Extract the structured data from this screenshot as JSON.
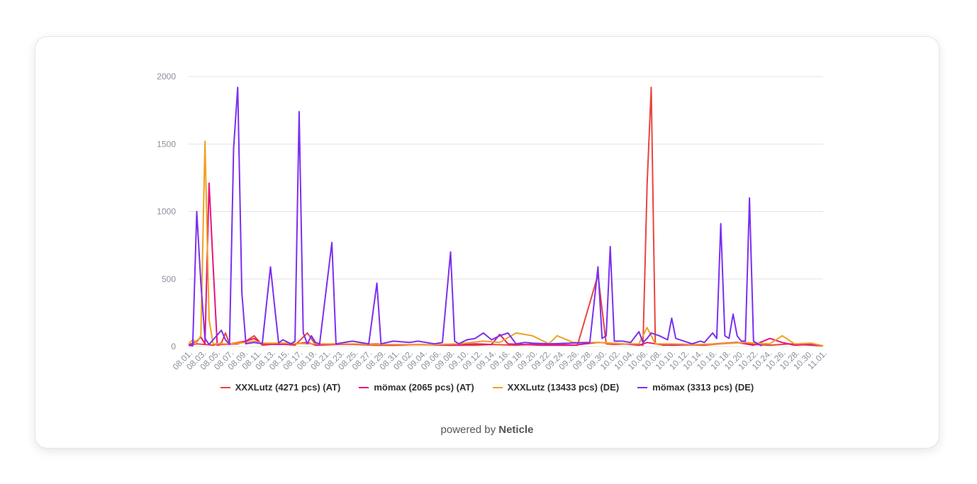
{
  "chart_data": {
    "type": "line",
    "title": "",
    "xlabel": "",
    "ylabel": "",
    "ylim": [
      0,
      2000
    ],
    "yticks": [
      0,
      500,
      1000,
      1500,
      2000
    ],
    "grid": true,
    "legend_position": "bottom",
    "x_tick_labels": [
      "08.01.",
      "08.03.",
      "08.05.",
      "08.07.",
      "08.09.",
      "08.11.",
      "08.13.",
      "08.15.",
      "08.17.",
      "08.19.",
      "08.21.",
      "08.23.",
      "08.25.",
      "08.27.",
      "08.29.",
      "08.31.",
      "09.02.",
      "09.04.",
      "09.06.",
      "09.08.",
      "09.10.",
      "09.12.",
      "09.14.",
      "09.16.",
      "09.18.",
      "09.20.",
      "09.22.",
      "09.24.",
      "09.26.",
      "09.28.",
      "09.30.",
      "10.02.",
      "10.04.",
      "10.06.",
      "10.08.",
      "10.10.",
      "10.12.",
      "10.14.",
      "10.16.",
      "10.18.",
      "10.20.",
      "10.22.",
      "10.24.",
      "10.26.",
      "10.28.",
      "10.30.",
      "11.01."
    ],
    "series": [
      {
        "name": "XXXLutz (4271 pcs) (AT)",
        "color": "#e8453c",
        "points": [
          [
            0,
            10
          ],
          [
            2,
            20
          ],
          [
            4,
            15
          ],
          [
            6,
            10
          ],
          [
            8,
            25
          ],
          [
            9,
            100
          ],
          [
            10,
            20
          ],
          [
            14,
            40
          ],
          [
            16,
            80
          ],
          [
            18,
            10
          ],
          [
            22,
            20
          ],
          [
            26,
            10
          ],
          [
            29,
            100
          ],
          [
            31,
            15
          ],
          [
            36,
            20
          ],
          [
            46,
            10
          ],
          [
            50,
            10
          ],
          [
            56,
            15
          ],
          [
            64,
            10
          ],
          [
            70,
            10
          ],
          [
            74,
            15
          ],
          [
            80,
            10
          ],
          [
            86,
            20
          ],
          [
            90,
            15
          ],
          [
            95,
            10
          ],
          [
            100,
            530
          ],
          [
            102,
            20
          ],
          [
            104,
            15
          ],
          [
            108,
            20
          ],
          [
            111,
            10
          ],
          [
            112,
            1200
          ],
          [
            113,
            1920
          ],
          [
            114,
            20
          ],
          [
            116,
            10
          ],
          [
            120,
            15
          ],
          [
            126,
            10
          ],
          [
            130,
            20
          ],
          [
            134,
            30
          ],
          [
            138,
            15
          ],
          [
            142,
            10
          ],
          [
            147,
            20
          ],
          [
            152,
            10
          ],
          [
            155,
            5
          ]
        ]
      },
      {
        "name": "mömax (2065 pcs) (AT)",
        "color": "#e6157c",
        "points": [
          [
            0,
            10
          ],
          [
            2,
            40
          ],
          [
            3,
            70
          ],
          [
            4,
            20
          ],
          [
            5,
            1210
          ],
          [
            6,
            600
          ],
          [
            7,
            10
          ],
          [
            8,
            15
          ],
          [
            12,
            20
          ],
          [
            16,
            60
          ],
          [
            18,
            20
          ],
          [
            22,
            15
          ],
          [
            26,
            20
          ],
          [
            29,
            30
          ],
          [
            31,
            10
          ],
          [
            36,
            15
          ],
          [
            46,
            20
          ],
          [
            50,
            10
          ],
          [
            56,
            15
          ],
          [
            64,
            10
          ],
          [
            70,
            20
          ],
          [
            74,
            15
          ],
          [
            76,
            90
          ],
          [
            78,
            20
          ],
          [
            86,
            10
          ],
          [
            94,
            10
          ],
          [
            100,
            30
          ],
          [
            106,
            20
          ],
          [
            110,
            10
          ],
          [
            112,
            30
          ],
          [
            114,
            20
          ],
          [
            118,
            10
          ],
          [
            126,
            15
          ],
          [
            134,
            30
          ],
          [
            138,
            10
          ],
          [
            142,
            60
          ],
          [
            145,
            30
          ],
          [
            148,
            10
          ],
          [
            152,
            15
          ],
          [
            155,
            5
          ]
        ]
      },
      {
        "name": "XXXLutz (13433 pcs) (DE)",
        "color": "#f0a020",
        "points": [
          [
            0,
            20
          ],
          [
            1,
            50
          ],
          [
            2,
            30
          ],
          [
            3,
            80
          ],
          [
            4,
            1520
          ],
          [
            5,
            200
          ],
          [
            6,
            20
          ],
          [
            10,
            20
          ],
          [
            14,
            30
          ],
          [
            16,
            40
          ],
          [
            18,
            25
          ],
          [
            24,
            25
          ],
          [
            30,
            20
          ],
          [
            40,
            20
          ],
          [
            50,
            15
          ],
          [
            60,
            15
          ],
          [
            66,
            20
          ],
          [
            72,
            40
          ],
          [
            76,
            30
          ],
          [
            80,
            100
          ],
          [
            84,
            80
          ],
          [
            88,
            20
          ],
          [
            90,
            80
          ],
          [
            94,
            30
          ],
          [
            100,
            30
          ],
          [
            106,
            20
          ],
          [
            110,
            20
          ],
          [
            112,
            140
          ],
          [
            114,
            20
          ],
          [
            118,
            20
          ],
          [
            124,
            15
          ],
          [
            130,
            20
          ],
          [
            136,
            30
          ],
          [
            142,
            20
          ],
          [
            145,
            80
          ],
          [
            148,
            20
          ],
          [
            152,
            25
          ],
          [
            155,
            5
          ]
        ]
      },
      {
        "name": "mömax (3313 pcs) (DE)",
        "color": "#7b2ff0",
        "points": [
          [
            0,
            10
          ],
          [
            1,
            5
          ],
          [
            2,
            1000
          ],
          [
            3,
            470
          ],
          [
            4,
            60
          ],
          [
            5,
            15
          ],
          [
            8,
            120
          ],
          [
            9,
            50
          ],
          [
            10,
            15
          ],
          [
            11,
            1470
          ],
          [
            12,
            1920
          ],
          [
            13,
            400
          ],
          [
            14,
            20
          ],
          [
            16,
            30
          ],
          [
            18,
            20
          ],
          [
            20,
            590
          ],
          [
            21,
            300
          ],
          [
            22,
            25
          ],
          [
            23,
            50
          ],
          [
            25,
            20
          ],
          [
            26,
            40
          ],
          [
            27,
            1740
          ],
          [
            28,
            100
          ],
          [
            29,
            20
          ],
          [
            30,
            80
          ],
          [
            31,
            30
          ],
          [
            32,
            20
          ],
          [
            35,
            770
          ],
          [
            36,
            20
          ],
          [
            40,
            40
          ],
          [
            44,
            20
          ],
          [
            46,
            470
          ],
          [
            47,
            20
          ],
          [
            50,
            40
          ],
          [
            54,
            30
          ],
          [
            56,
            40
          ],
          [
            60,
            20
          ],
          [
            62,
            30
          ],
          [
            64,
            700
          ],
          [
            65,
            40
          ],
          [
            66,
            20
          ],
          [
            68,
            50
          ],
          [
            70,
            60
          ],
          [
            72,
            100
          ],
          [
            74,
            50
          ],
          [
            76,
            80
          ],
          [
            78,
            100
          ],
          [
            80,
            20
          ],
          [
            82,
            30
          ],
          [
            84,
            25
          ],
          [
            88,
            20
          ],
          [
            98,
            30
          ],
          [
            100,
            590
          ],
          [
            101,
            60
          ],
          [
            102,
            80
          ],
          [
            103,
            740
          ],
          [
            104,
            40
          ],
          [
            106,
            40
          ],
          [
            108,
            30
          ],
          [
            110,
            110
          ],
          [
            111,
            30
          ],
          [
            112,
            60
          ],
          [
            113,
            100
          ],
          [
            115,
            80
          ],
          [
            117,
            50
          ],
          [
            118,
            210
          ],
          [
            119,
            60
          ],
          [
            121,
            40
          ],
          [
            122,
            30
          ],
          [
            123,
            20
          ],
          [
            125,
            40
          ],
          [
            126,
            30
          ],
          [
            128,
            100
          ],
          [
            129,
            60
          ],
          [
            130,
            910
          ],
          [
            131,
            80
          ],
          [
            132,
            60
          ],
          [
            133,
            240
          ],
          [
            134,
            80
          ],
          [
            135,
            40
          ],
          [
            136,
            40
          ],
          [
            137,
            1100
          ],
          [
            138,
            40
          ],
          [
            139,
            20
          ],
          [
            140,
            5
          ]
        ]
      }
    ],
    "x_max": 155
  },
  "legend_items": [
    "XXXLutz (4271 pcs) (AT)",
    "mömax (2065 pcs) (AT)",
    "XXXLutz (13433 pcs) (DE)",
    "mömax (3313 pcs) (DE)"
  ],
  "credit": {
    "prefix": "powered by ",
    "brand": "Neticle"
  },
  "colors": {
    "gridline": "#e4e4e4",
    "tick_text": "#8a8f9c"
  }
}
